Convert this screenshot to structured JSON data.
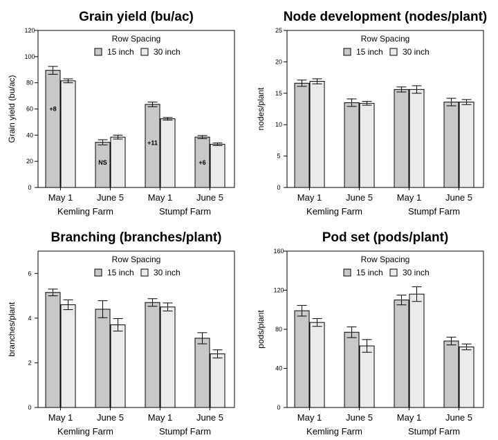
{
  "chart_data": [
    {
      "type": "bar",
      "title": "Grain yield (bu/ac)",
      "ylabel": "Grain yield (bu/ac)",
      "ylim": [
        0,
        120
      ],
      "yticks": [
        0,
        20,
        40,
        60,
        80,
        100,
        120
      ],
      "categories": [
        "May 1",
        "June 5",
        "May 1",
        "June 5"
      ],
      "groups": [
        "Kemling Farm",
        "Stumpf Farm"
      ],
      "legend_title": "Row Spacing",
      "series": [
        {
          "name": "15 inch",
          "values": [
            89.5,
            34.5,
            63.5,
            38.5
          ],
          "errors": [
            3,
            2,
            1.8,
            1.2
          ]
        },
        {
          "name": "30 inch",
          "values": [
            81.5,
            38.5,
            52.5,
            33
          ],
          "errors": [
            1.5,
            1.5,
            1,
            1
          ]
        }
      ],
      "annotations": [
        {
          "category_index": 0,
          "text": "+8",
          "y": 60
        },
        {
          "category_index": 1,
          "text": "NS",
          "y": 19
        },
        {
          "category_index": 2,
          "text": "+11",
          "y": 34
        },
        {
          "category_index": 3,
          "text": "+6",
          "y": 19
        }
      ],
      "colors": {
        "15 inch": "#c9c7c7",
        "30 inch": "#ecebeb"
      },
      "grid": false,
      "legend_position": "top-center"
    },
    {
      "type": "bar",
      "title": "Node development (nodes/plant)",
      "ylabel": "nodes/plant",
      "ylim": [
        0,
        25
      ],
      "yticks": [
        0,
        5,
        10,
        15,
        20,
        25
      ],
      "categories": [
        "May 1",
        "June 5",
        "May 1",
        "June 5"
      ],
      "groups": [
        "Kemling Farm",
        "Stumpf Farm"
      ],
      "legend_title": "Row Spacing",
      "series": [
        {
          "name": "15 inch",
          "values": [
            16.6,
            13.5,
            15.6,
            13.6
          ],
          "errors": [
            0.5,
            0.6,
            0.4,
            0.6
          ]
        },
        {
          "name": "30 inch",
          "values": [
            16.9,
            13.4,
            15.6,
            13.6
          ],
          "errors": [
            0.4,
            0.3,
            0.6,
            0.4
          ]
        }
      ],
      "annotations": [],
      "colors": {
        "15 inch": "#c9c7c7",
        "30 inch": "#ecebeb"
      },
      "grid": false,
      "legend_position": "top-center"
    },
    {
      "type": "bar",
      "title": "Branching (branches/plant)",
      "ylabel": "branches/plant",
      "ylim": [
        0,
        7
      ],
      "yticks": [
        0,
        2,
        4,
        6
      ],
      "categories": [
        "May 1",
        "June 5",
        "May 1",
        "June 5"
      ],
      "groups": [
        "Kemling Farm",
        "Stumpf Farm"
      ],
      "legend_title": "Row Spacing",
      "series": [
        {
          "name": "15 inch",
          "values": [
            5.15,
            4.4,
            4.7,
            3.1
          ],
          "errors": [
            0.15,
            0.38,
            0.17,
            0.25
          ]
        },
        {
          "name": "30 inch",
          "values": [
            4.6,
            3.7,
            4.5,
            2.4
          ],
          "errors": [
            0.22,
            0.28,
            0.18,
            0.18
          ]
        }
      ],
      "annotations": [],
      "colors": {
        "15 inch": "#c9c7c7",
        "30 inch": "#ecebeb"
      },
      "grid": false,
      "legend_position": "top-center"
    },
    {
      "type": "bar",
      "title": "Pod set (pods/plant)",
      "ylabel": "pods/plant",
      "ylim": [
        0,
        160
      ],
      "yticks": [
        0,
        40,
        80,
        120,
        160
      ],
      "categories": [
        "May 1",
        "June 5",
        "May 1",
        "June 5"
      ],
      "groups": [
        "Kemling Farm",
        "Stumpf Farm"
      ],
      "legend_title": "Row Spacing",
      "series": [
        {
          "name": "15 inch",
          "values": [
            99,
            77,
            110,
            68
          ],
          "errors": [
            5.5,
            5.5,
            5,
            4
          ]
        },
        {
          "name": "30 inch",
          "values": [
            87,
            63,
            116,
            62
          ],
          "errors": [
            4,
            6.5,
            7.5,
            3
          ]
        }
      ],
      "annotations": [],
      "colors": {
        "15 inch": "#c9c7c7",
        "30 inch": "#ecebeb"
      },
      "grid": false,
      "legend_position": "top-center"
    }
  ]
}
